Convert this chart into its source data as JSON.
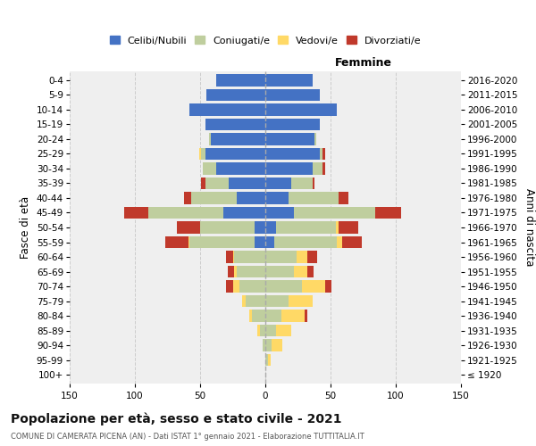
{
  "age_groups": [
    "100+",
    "95-99",
    "90-94",
    "85-89",
    "80-84",
    "75-79",
    "70-74",
    "65-69",
    "60-64",
    "55-59",
    "50-54",
    "45-49",
    "40-44",
    "35-39",
    "30-34",
    "25-29",
    "20-24",
    "15-19",
    "10-14",
    "5-9",
    "0-4"
  ],
  "birth_years": [
    "≤ 1920",
    "1921-1925",
    "1926-1930",
    "1931-1935",
    "1936-1940",
    "1941-1945",
    "1946-1950",
    "1951-1955",
    "1956-1960",
    "1961-1965",
    "1966-1970",
    "1971-1975",
    "1976-1980",
    "1981-1985",
    "1986-1990",
    "1991-1995",
    "1996-2000",
    "2001-2005",
    "2006-2010",
    "2011-2015",
    "2016-2020"
  ],
  "male_celibi": [
    0,
    0,
    0,
    0,
    0,
    0,
    0,
    0,
    0,
    8,
    8,
    32,
    22,
    28,
    38,
    46,
    42,
    46,
    58,
    45,
    38
  ],
  "male_coniugati": [
    0,
    0,
    2,
    4,
    10,
    15,
    20,
    22,
    24,
    50,
    42,
    58,
    35,
    18,
    10,
    3,
    1,
    0,
    0,
    0,
    0
  ],
  "male_vedovi": [
    0,
    0,
    0,
    2,
    2,
    3,
    5,
    2,
    1,
    1,
    0,
    0,
    0,
    0,
    0,
    2,
    0,
    0,
    0,
    0,
    0
  ],
  "male_divorziati": [
    0,
    0,
    0,
    0,
    0,
    0,
    5,
    5,
    5,
    18,
    18,
    18,
    5,
    3,
    0,
    0,
    0,
    0,
    0,
    0,
    0
  ],
  "female_nubili": [
    0,
    0,
    0,
    0,
    0,
    0,
    0,
    0,
    0,
    7,
    8,
    22,
    18,
    20,
    36,
    42,
    38,
    42,
    55,
    42,
    36
  ],
  "female_coniugate": [
    0,
    2,
    5,
    8,
    12,
    18,
    28,
    22,
    24,
    48,
    46,
    62,
    38,
    16,
    8,
    2,
    1,
    0,
    0,
    0,
    0
  ],
  "female_vedove": [
    0,
    2,
    8,
    12,
    18,
    18,
    18,
    10,
    8,
    4,
    2,
    0,
    0,
    0,
    0,
    0,
    0,
    0,
    0,
    0,
    0
  ],
  "female_divorziate": [
    0,
    0,
    0,
    0,
    2,
    0,
    5,
    5,
    8,
    15,
    15,
    20,
    8,
    2,
    2,
    2,
    0,
    0,
    0,
    0,
    0
  ],
  "colors_celibi": "#4472C4",
  "colors_coniugati": "#BFCE9E",
  "colors_vedovi": "#FFD966",
  "colors_divorziati": "#C0392B",
  "title": "Popolazione per età, sesso e stato civile - 2021",
  "subtitle": "COMUNE DI CAMERATA PICENA (AN) - Dati ISTAT 1° gennaio 2021 - Elaborazione TUTTITALIA.IT",
  "ylabel_left": "Fasce di età",
  "ylabel_right": "Anni di nascita",
  "label_femmine": "Femmine",
  "legend_labels": [
    "Celibi/Nubili",
    "Coniugati/e",
    "Vedovi/e",
    "Divorziati/e"
  ],
  "xlim": 150,
  "bar_height": 0.82,
  "bg_color": "#ffffff",
  "plot_bg": "#efefef",
  "grid_color": "#cccccc"
}
